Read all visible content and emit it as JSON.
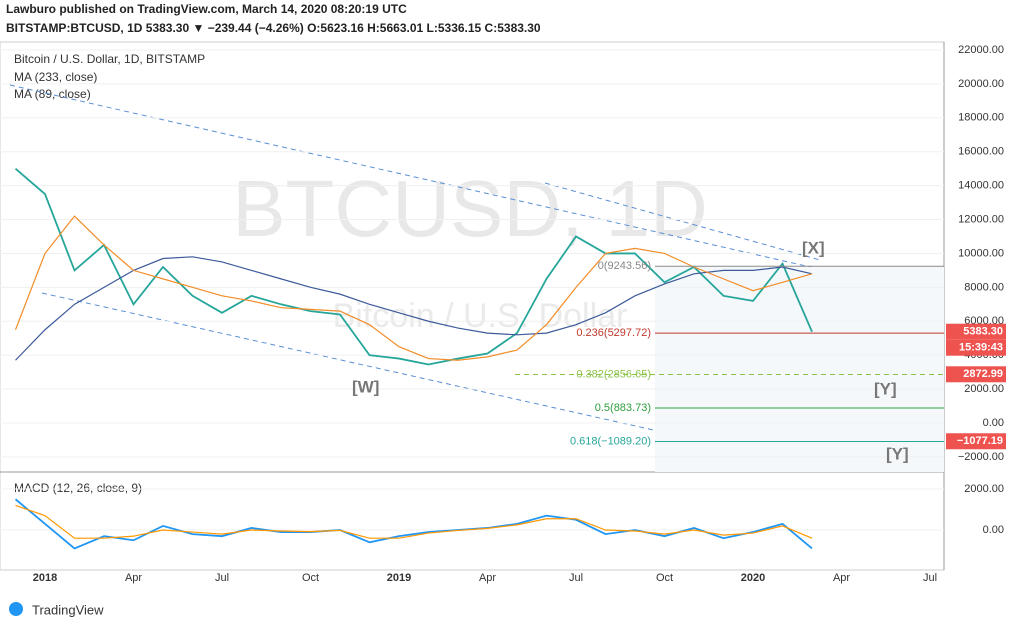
{
  "header": {
    "published": "Lawburo published on TradingView.com, March 14, 2020 08:20:19 UTC",
    "symbol": "BITSTAMP:BTCUSD, 1D 5383.30 ▼ −239.44 (−4.26%) O:5623.16 H:5663.01 L:5336.15 C:5383.30"
  },
  "legend": {
    "title": "Bitcoin / U.S. Dollar, 1D, BITSTAMP"
  },
  "watermark": {
    "ticker": "BTCUSD, 1D",
    "name": "Bitcoin / U.S. Dollar"
  },
  "chart_data": [
    {
      "type": "line",
      "categories": [
        null,
        "2018",
        null,
        null,
        "Apr",
        null,
        null,
        "Jul",
        null,
        null,
        "Oct",
        null,
        null,
        "2019",
        null,
        null,
        "Apr",
        null,
        null,
        "Jul",
        null,
        null,
        "Oct",
        null,
        null,
        "2020",
        null,
        null,
        "Apr",
        null,
        null,
        "Jul",
        null
      ],
      "series": [
        {
          "name": "Bitcoin / U.S. Dollar",
          "color": "#26a69a",
          "values": [
            15000,
            13500,
            9000,
            10500,
            7000,
            9200,
            7500,
            6500,
            7500,
            7000,
            6600,
            6400,
            4000,
            3800,
            3450,
            3800,
            4100,
            5300,
            8500,
            11000,
            10000,
            10000,
            8300,
            9200,
            7500,
            7200,
            9400,
            5383.3,
            null,
            null,
            null,
            null,
            null
          ]
        },
        {
          "name": "MA (233, close)",
          "color": "#3c5a9a",
          "values": [
            3700,
            5500,
            7000,
            8000,
            9000,
            9700,
            9800,
            9500,
            9000,
            8500,
            8000,
            7600,
            7000,
            6500,
            6000,
            5600,
            5300,
            5200,
            5300,
            5800,
            6500,
            7500,
            8200,
            8800,
            9000,
            9000,
            9200,
            8800,
            null,
            null,
            null,
            null,
            null
          ]
        },
        {
          "name": "MA (89, close)",
          "color": "#f28c28",
          "values": [
            5500,
            10000,
            12200,
            10500,
            9000,
            8500,
            8000,
            7500,
            7200,
            6800,
            6700,
            6600,
            5800,
            4500,
            3800,
            3700,
            3900,
            4300,
            5800,
            8000,
            10000,
            10300,
            10000,
            9200,
            8500,
            7800,
            8300,
            8800,
            null,
            null,
            null,
            null,
            null
          ]
        }
      ],
      "ylim": [
        -2890,
        22470
      ],
      "yticks": [
        {
          "value": -2000,
          "label": "−2000.00"
        },
        {
          "value": 0,
          "label": "0.00"
        },
        {
          "value": 2000,
          "label": "2000.00"
        },
        {
          "value": 4000,
          "label": "4000.00"
        },
        {
          "value": 6000,
          "label": "6000.00"
        },
        {
          "value": 8000,
          "label": "8000.00"
        },
        {
          "value": 10000,
          "label": "10000.00"
        },
        {
          "value": 12000,
          "label": "12000.00"
        },
        {
          "value": 14000,
          "label": "14000.00"
        },
        {
          "value": 16000,
          "label": "16000.00"
        },
        {
          "value": 18000,
          "label": "18000.00"
        },
        {
          "value": 20000,
          "label": "20000.00"
        },
        {
          "value": 22000,
          "label": "22000.00"
        }
      ],
      "fib_levels": [
        {
          "label": "0(9243.56)",
          "value": 9243.56,
          "color": "#888888"
        },
        {
          "label": "0.236(5297.72)",
          "value": 5297.72,
          "color": "#c0392b"
        },
        {
          "label": "0.382(2856.65)",
          "value": 2856.65,
          "color": "#8bc34a"
        },
        {
          "label": "0.5(883.73)",
          "value": 883.73,
          "color": "#2e9e3e"
        },
        {
          "label": "0.618(−1089.20)",
          "value": -1089.2,
          "color": "#26a69a"
        }
      ],
      "price_labels": [
        {
          "value": 5383.3,
          "label": "5383.30",
          "color": "#ef5350"
        },
        {
          "value": 2872.99,
          "label": "2872.99",
          "color": "#ef5350"
        },
        {
          "value": -1077.19,
          "label": "−1077.19",
          "color": "#ef5350"
        }
      ],
      "countdown": "15:39:43",
      "waves": [
        "[W]",
        "[X]",
        "[Y]",
        "[Y]"
      ]
    },
    {
      "type": "line",
      "title": "MACD (12, 26, close, 9)",
      "series": [
        {
          "name": "MACD",
          "color": "#2196f3",
          "values": [
            1500,
            300,
            -900,
            -300,
            -500,
            200,
            -200,
            -300,
            100,
            -100,
            -100,
            0,
            -600,
            -300,
            -100,
            0,
            100,
            300,
            700,
            500,
            -200,
            0,
            -300,
            100,
            -400,
            -100,
            300,
            -900,
            null,
            null,
            null,
            null,
            null
          ]
        },
        {
          "name": "Signal",
          "color": "#ff9800",
          "values": [
            1200,
            700,
            -400,
            -400,
            -300,
            0,
            -100,
            -200,
            0,
            -50,
            -80,
            -20,
            -400,
            -400,
            -150,
            -20,
            80,
            250,
            550,
            550,
            0,
            -50,
            -200,
            0,
            -250,
            -150,
            200,
            -400,
            null,
            null,
            null,
            null,
            null
          ]
        }
      ],
      "ylim": [
        -1707,
        2683
      ],
      "yticks": [
        {
          "value": 0,
          "label": "0.00"
        },
        {
          "value": 2000,
          "label": "2000.00"
        }
      ]
    }
  ],
  "footer": {
    "brand": "TradingView"
  }
}
